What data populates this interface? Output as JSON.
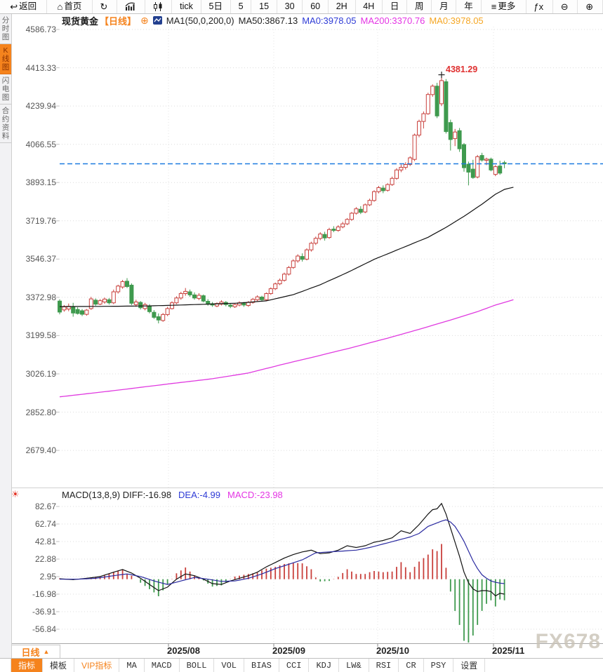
{
  "colors": {
    "accent_orange": "#f5831d",
    "candle_up": "#c9403c",
    "candle_down": "#3f9a4e",
    "ma50_line": "#111111",
    "ma200_line": "#e03ae0",
    "dea_line": "#2a2aa0",
    "diff_line": "#111111",
    "last_price_line": "#1d7ae0",
    "text_blue": "#2e3bd6",
    "text_magenta": "#e435e4",
    "text_orange": "#f5a623",
    "annotation_red": "#e03030",
    "grid": "#dcdcdc"
  },
  "icon_glyphs": {
    "back-arrow": "↩",
    "home": "⌂",
    "refresh": "↻",
    "menu": "≡",
    "fx": "ƒx",
    "zoom-out": "⊖",
    "zoom-in": "⊕",
    "add-circle": "⊕",
    "settings-sun": "☀",
    "dropdown-up": "▲"
  },
  "top_toolbar": {
    "items": [
      {
        "name": "back",
        "icon": "back-arrow",
        "label": "返回"
      },
      {
        "name": "home",
        "icon": "home",
        "label": "首页"
      },
      {
        "name": "refresh",
        "icon": "refresh",
        "label": ""
      },
      {
        "name": "area-chart",
        "icon": "bar-chart",
        "label": ""
      },
      {
        "name": "candle-chart",
        "icon": "candlestick",
        "label": ""
      },
      {
        "name": "tick",
        "label": "tick"
      },
      {
        "name": "5d",
        "label": "5日"
      },
      {
        "name": "5",
        "label": "5"
      },
      {
        "name": "15",
        "label": "15"
      },
      {
        "name": "30",
        "label": "30"
      },
      {
        "name": "60",
        "label": "60"
      },
      {
        "name": "2h",
        "label": "2H"
      },
      {
        "name": "4h",
        "label": "4H"
      },
      {
        "name": "day",
        "label": "日"
      },
      {
        "name": "week",
        "label": "周"
      },
      {
        "name": "month",
        "label": "月"
      },
      {
        "name": "year",
        "label": "年"
      },
      {
        "name": "more",
        "icon": "menu",
        "label": "更多"
      },
      {
        "name": "fx",
        "icon": "fx",
        "label": ""
      },
      {
        "name": "zoom-out",
        "icon": "zoom-out",
        "label": ""
      },
      {
        "name": "zoom-in",
        "icon": "zoom-in",
        "label": ""
      }
    ]
  },
  "sidebar": {
    "items": [
      {
        "label": "分时图",
        "active": false
      },
      {
        "label": "K线图",
        "active": true
      },
      {
        "label": "闪电图",
        "active": false
      },
      {
        "label": "合约资料",
        "active": false
      }
    ]
  },
  "header": {
    "symbol": "现货黄金",
    "period": "【日线】",
    "ma_params": "MA1(50,0,200,0)",
    "ma50": "MA50:3867.13",
    "ma0_blue": "MA0:3978.05",
    "ma200": "MA200:3370.76",
    "ma0_orange": "MA0:3978.05"
  },
  "macd_header": {
    "black": "MACD(13,8,9) DIFF:-16.98",
    "dea": "DEA:-4.99",
    "macd": "MACD:-23.98"
  },
  "bottom": {
    "period": "日线",
    "indicators": [
      {
        "label": "指标",
        "state": "active",
        "cjk": true
      },
      {
        "label": "模板",
        "state": "normal",
        "cjk": true
      },
      {
        "label": "VIP指标",
        "state": "vip",
        "cjk": true
      },
      {
        "label": "MA"
      },
      {
        "label": "MACD"
      },
      {
        "label": "BOLL"
      },
      {
        "label": "VOL"
      },
      {
        "label": "BIAS"
      },
      {
        "label": "CCI"
      },
      {
        "label": "KDJ"
      },
      {
        "label": "LW&"
      },
      {
        "label": "RSI"
      },
      {
        "label": "CR"
      },
      {
        "label": "PSY"
      },
      {
        "label": "设置",
        "state": "normal",
        "cjk": true
      }
    ]
  },
  "watermark": "FX678",
  "chart_data": {
    "type": "candlestick",
    "symbol": "现货黄金",
    "period": "日线",
    "x_labels": [
      "2025/08",
      "2025/09",
      "2025/10",
      "2025/11"
    ],
    "legend": [
      "MA50",
      "MA200",
      "DIFF",
      "DEA",
      "MACD"
    ],
    "price_panel": {
      "y_ticks": [
        "4586.73",
        "4413.33",
        "4239.94",
        "4066.55",
        "3893.15",
        "3719.76",
        "3546.37",
        "3372.98",
        "3199.58",
        "3026.19",
        "2852.80",
        "2679.40"
      ],
      "last_price": 3978.05,
      "peak_annotation": {
        "label": "4381.29",
        "index": 85,
        "price": 4381.29
      },
      "ma50_last": 3867.13,
      "ma200_last": 3370.76,
      "candles": [
        [
          3356,
          3364,
          3296,
          3306
        ],
        [
          3316,
          3338,
          3308,
          3330
        ],
        [
          3320,
          3345,
          3310,
          3332
        ],
        [
          3330,
          3348,
          3285,
          3302
        ],
        [
          3318,
          3328,
          3295,
          3300
        ],
        [
          3312,
          3320,
          3288,
          3296
        ],
        [
          3296,
          3320,
          3290,
          3315
        ],
        [
          3322,
          3375,
          3316,
          3366
        ],
        [
          3360,
          3368,
          3335,
          3342
        ],
        [
          3342,
          3365,
          3338,
          3358
        ],
        [
          3352,
          3372,
          3344,
          3365
        ],
        [
          3362,
          3370,
          3340,
          3348
        ],
        [
          3348,
          3408,
          3342,
          3398
        ],
        [
          3398,
          3430,
          3390,
          3424
        ],
        [
          3420,
          3452,
          3412,
          3444
        ],
        [
          3446,
          3460,
          3415,
          3422
        ],
        [
          3428,
          3436,
          3338,
          3346
        ],
        [
          3340,
          3362,
          3330,
          3352
        ],
        [
          3350,
          3356,
          3318,
          3326
        ],
        [
          3322,
          3348,
          3314,
          3340
        ],
        [
          3334,
          3342,
          3300,
          3308
        ],
        [
          3305,
          3315,
          3275,
          3282
        ],
        [
          3285,
          3300,
          3255,
          3270
        ],
        [
          3268,
          3302,
          3262,
          3295
        ],
        [
          3295,
          3330,
          3288,
          3322
        ],
        [
          3322,
          3355,
          3318,
          3348
        ],
        [
          3348,
          3378,
          3342,
          3370
        ],
        [
          3370,
          3398,
          3362,
          3390
        ],
        [
          3390,
          3415,
          3380,
          3400
        ],
        [
          3398,
          3408,
          3375,
          3384
        ],
        [
          3384,
          3395,
          3362,
          3370
        ],
        [
          3368,
          3392,
          3360,
          3382
        ],
        [
          3380,
          3386,
          3350,
          3356
        ],
        [
          3355,
          3365,
          3335,
          3344
        ],
        [
          3344,
          3352,
          3330,
          3338
        ],
        [
          3334,
          3350,
          3328,
          3345
        ],
        [
          3342,
          3360,
          3336,
          3352
        ],
        [
          3350,
          3356,
          3332,
          3340
        ],
        [
          3338,
          3346,
          3324,
          3332
        ],
        [
          3330,
          3345,
          3325,
          3340
        ],
        [
          3338,
          3355,
          3332,
          3348
        ],
        [
          3346,
          3352,
          3330,
          3338
        ],
        [
          3336,
          3356,
          3330,
          3350
        ],
        [
          3350,
          3370,
          3344,
          3364
        ],
        [
          3362,
          3382,
          3356,
          3375
        ],
        [
          3374,
          3380,
          3356,
          3362
        ],
        [
          3362,
          3395,
          3358,
          3390
        ],
        [
          3390,
          3418,
          3384,
          3412
        ],
        [
          3412,
          3440,
          3406,
          3434
        ],
        [
          3434,
          3458,
          3428,
          3450
        ],
        [
          3450,
          3485,
          3444,
          3478
        ],
        [
          3478,
          3515,
          3472,
          3508
        ],
        [
          3508,
          3545,
          3502,
          3538
        ],
        [
          3538,
          3568,
          3530,
          3560
        ],
        [
          3558,
          3572,
          3535,
          3545
        ],
        [
          3546,
          3595,
          3540,
          3588
        ],
        [
          3588,
          3625,
          3580,
          3618
        ],
        [
          3618,
          3648,
          3610,
          3640
        ],
        [
          3640,
          3668,
          3632,
          3660
        ],
        [
          3658,
          3670,
          3630,
          3642
        ],
        [
          3644,
          3688,
          3638,
          3680
        ],
        [
          3682,
          3695,
          3668,
          3676
        ],
        [
          3676,
          3700,
          3670,
          3692
        ],
        [
          3692,
          3715,
          3686,
          3706
        ],
        [
          3706,
          3732,
          3700,
          3726
        ],
        [
          3726,
          3760,
          3720,
          3754
        ],
        [
          3754,
          3782,
          3748,
          3774
        ],
        [
          3772,
          3786,
          3750,
          3758
        ],
        [
          3760,
          3798,
          3754,
          3792
        ],
        [
          3792,
          3820,
          3786,
          3812
        ],
        [
          3812,
          3858,
          3806,
          3852
        ],
        [
          3852,
          3878,
          3844,
          3870
        ],
        [
          3868,
          3880,
          3845,
          3856
        ],
        [
          3858,
          3890,
          3852,
          3884
        ],
        [
          3884,
          3920,
          3878,
          3912
        ],
        [
          3912,
          3958,
          3906,
          3950
        ],
        [
          3950,
          3975,
          3940,
          3962
        ],
        [
          3962,
          3985,
          3952,
          3975
        ],
        [
          3975,
          4012,
          3968,
          4005
        ],
        [
          3998,
          4115,
          3990,
          4108
        ],
        [
          4108,
          4178,
          4098,
          4170
        ],
        [
          4170,
          4215,
          4138,
          4205
        ],
        [
          4205,
          4300,
          4200,
          4292
        ],
        [
          4292,
          4338,
          4282,
          4330
        ],
        [
          4330,
          4345,
          4185,
          4195
        ],
        [
          4250,
          4381.29,
          4240,
          4355
        ],
        [
          4350,
          4362,
          4115,
          4124
        ],
        [
          4165,
          4178,
          4038,
          4088
        ],
        [
          4092,
          4136,
          4058,
          4122
        ],
        [
          4128,
          4140,
          4032,
          4046
        ],
        [
          4065,
          4072,
          3942,
          3960
        ],
        [
          3976,
          3988,
          3880,
          3940
        ],
        [
          3954,
          3996,
          3910,
          3916
        ],
        [
          3918,
          4018,
          3912,
          4010
        ],
        [
          4016,
          4028,
          3988,
          3995
        ],
        [
          3994,
          4006,
          3972,
          3999
        ],
        [
          3999,
          4006,
          3944,
          3950
        ],
        [
          3930,
          3972,
          3922,
          3965
        ],
        [
          3968,
          3992,
          3928,
          3936
        ],
        [
          3983,
          3992,
          3958,
          3978.05
        ]
      ],
      "ma50_points": [
        [
          0,
          3331
        ],
        [
          10,
          3332
        ],
        [
          20,
          3334
        ],
        [
          30,
          3340
        ],
        [
          40,
          3347
        ],
        [
          46,
          3357
        ],
        [
          52,
          3385
        ],
        [
          58,
          3430
        ],
        [
          64,
          3485
        ],
        [
          70,
          3545
        ],
        [
          76,
          3595
        ],
        [
          82,
          3645
        ],
        [
          86,
          3690
        ],
        [
          90,
          3740
        ],
        [
          94,
          3795
        ],
        [
          97,
          3840
        ],
        [
          99,
          3862
        ],
        [
          101,
          3872
        ]
      ],
      "ma200_points": [
        [
          0,
          2922
        ],
        [
          12,
          2950
        ],
        [
          24,
          2980
        ],
        [
          34,
          3004
        ],
        [
          42,
          3030
        ],
        [
          49,
          3066
        ],
        [
          57,
          3105
        ],
        [
          65,
          3145
        ],
        [
          73,
          3188
        ],
        [
          80,
          3228
        ],
        [
          87,
          3270
        ],
        [
          93,
          3308
        ],
        [
          97,
          3338
        ],
        [
          101,
          3362
        ]
      ]
    },
    "macd_panel": {
      "params": "MACD(13,8,9)",
      "diff": -16.98,
      "dea": -4.99,
      "macd": -23.98,
      "y_ticks": [
        "82.67",
        "62.74",
        "42.81",
        "22.88",
        "2.95",
        "-16.98",
        "-36.91",
        "-56.84"
      ],
      "diff_points": [
        [
          0,
          0.5
        ],
        [
          3,
          -0.5
        ],
        [
          6,
          1
        ],
        [
          9,
          3
        ],
        [
          12,
          8
        ],
        [
          14,
          11
        ],
        [
          16,
          7
        ],
        [
          18,
          1
        ],
        [
          20,
          -6
        ],
        [
          22,
          -13
        ],
        [
          24,
          -9
        ],
        [
          26,
          0
        ],
        [
          28,
          6
        ],
        [
          30,
          4
        ],
        [
          32,
          0
        ],
        [
          34,
          -5
        ],
        [
          36,
          -6
        ],
        [
          38,
          -2
        ],
        [
          40,
          1
        ],
        [
          42,
          4
        ],
        [
          44,
          8
        ],
        [
          46,
          14
        ],
        [
          48,
          19
        ],
        [
          50,
          24
        ],
        [
          52,
          28
        ],
        [
          54,
          31
        ],
        [
          56,
          33
        ],
        [
          58,
          29
        ],
        [
          60,
          30
        ],
        [
          62,
          33
        ],
        [
          64,
          38
        ],
        [
          66,
          36
        ],
        [
          68,
          38
        ],
        [
          70,
          42
        ],
        [
          72,
          44
        ],
        [
          74,
          47
        ],
        [
          76,
          55
        ],
        [
          78,
          52
        ],
        [
          80,
          62
        ],
        [
          82,
          74
        ],
        [
          83,
          79
        ],
        [
          84,
          80
        ],
        [
          85,
          86
        ],
        [
          86,
          74
        ],
        [
          87,
          58
        ],
        [
          88,
          42
        ],
        [
          89,
          26
        ],
        [
          90,
          8
        ],
        [
          91,
          -4
        ],
        [
          92,
          -11
        ],
        [
          93,
          -14
        ],
        [
          94,
          -13
        ],
        [
          95,
          -13
        ],
        [
          96,
          -14
        ],
        [
          97,
          -19
        ],
        [
          98,
          -16
        ],
        [
          99,
          -16.98
        ]
      ],
      "dea_points": [
        [
          0,
          0
        ],
        [
          4,
          0
        ],
        [
          8,
          1
        ],
        [
          12,
          4
        ],
        [
          15,
          6
        ],
        [
          18,
          3
        ],
        [
          21,
          -2
        ],
        [
          24,
          -6
        ],
        [
          27,
          -2
        ],
        [
          30,
          2
        ],
        [
          33,
          0
        ],
        [
          36,
          -2.5
        ],
        [
          39,
          -2
        ],
        [
          42,
          1
        ],
        [
          45,
          6
        ],
        [
          48,
          12
        ],
        [
          51,
          17
        ],
        [
          54,
          22
        ],
        [
          57,
          30
        ],
        [
          60,
          31
        ],
        [
          63,
          32
        ],
        [
          66,
          33
        ],
        [
          69,
          36
        ],
        [
          72,
          40
        ],
        [
          75,
          44
        ],
        [
          78,
          48
        ],
        [
          80,
          52
        ],
        [
          82,
          60
        ],
        [
          84,
          64
        ],
        [
          85,
          66
        ],
        [
          86,
          67.5
        ],
        [
          87,
          65
        ],
        [
          88,
          60
        ],
        [
          89,
          52
        ],
        [
          90,
          43
        ],
        [
          91,
          32
        ],
        [
          92,
          21
        ],
        [
          93,
          12
        ],
        [
          94,
          5
        ],
        [
          95,
          1
        ],
        [
          96,
          -2
        ],
        [
          97,
          -3.5
        ],
        [
          98,
          -4.5
        ],
        [
          99,
          -4.99
        ]
      ]
    }
  }
}
